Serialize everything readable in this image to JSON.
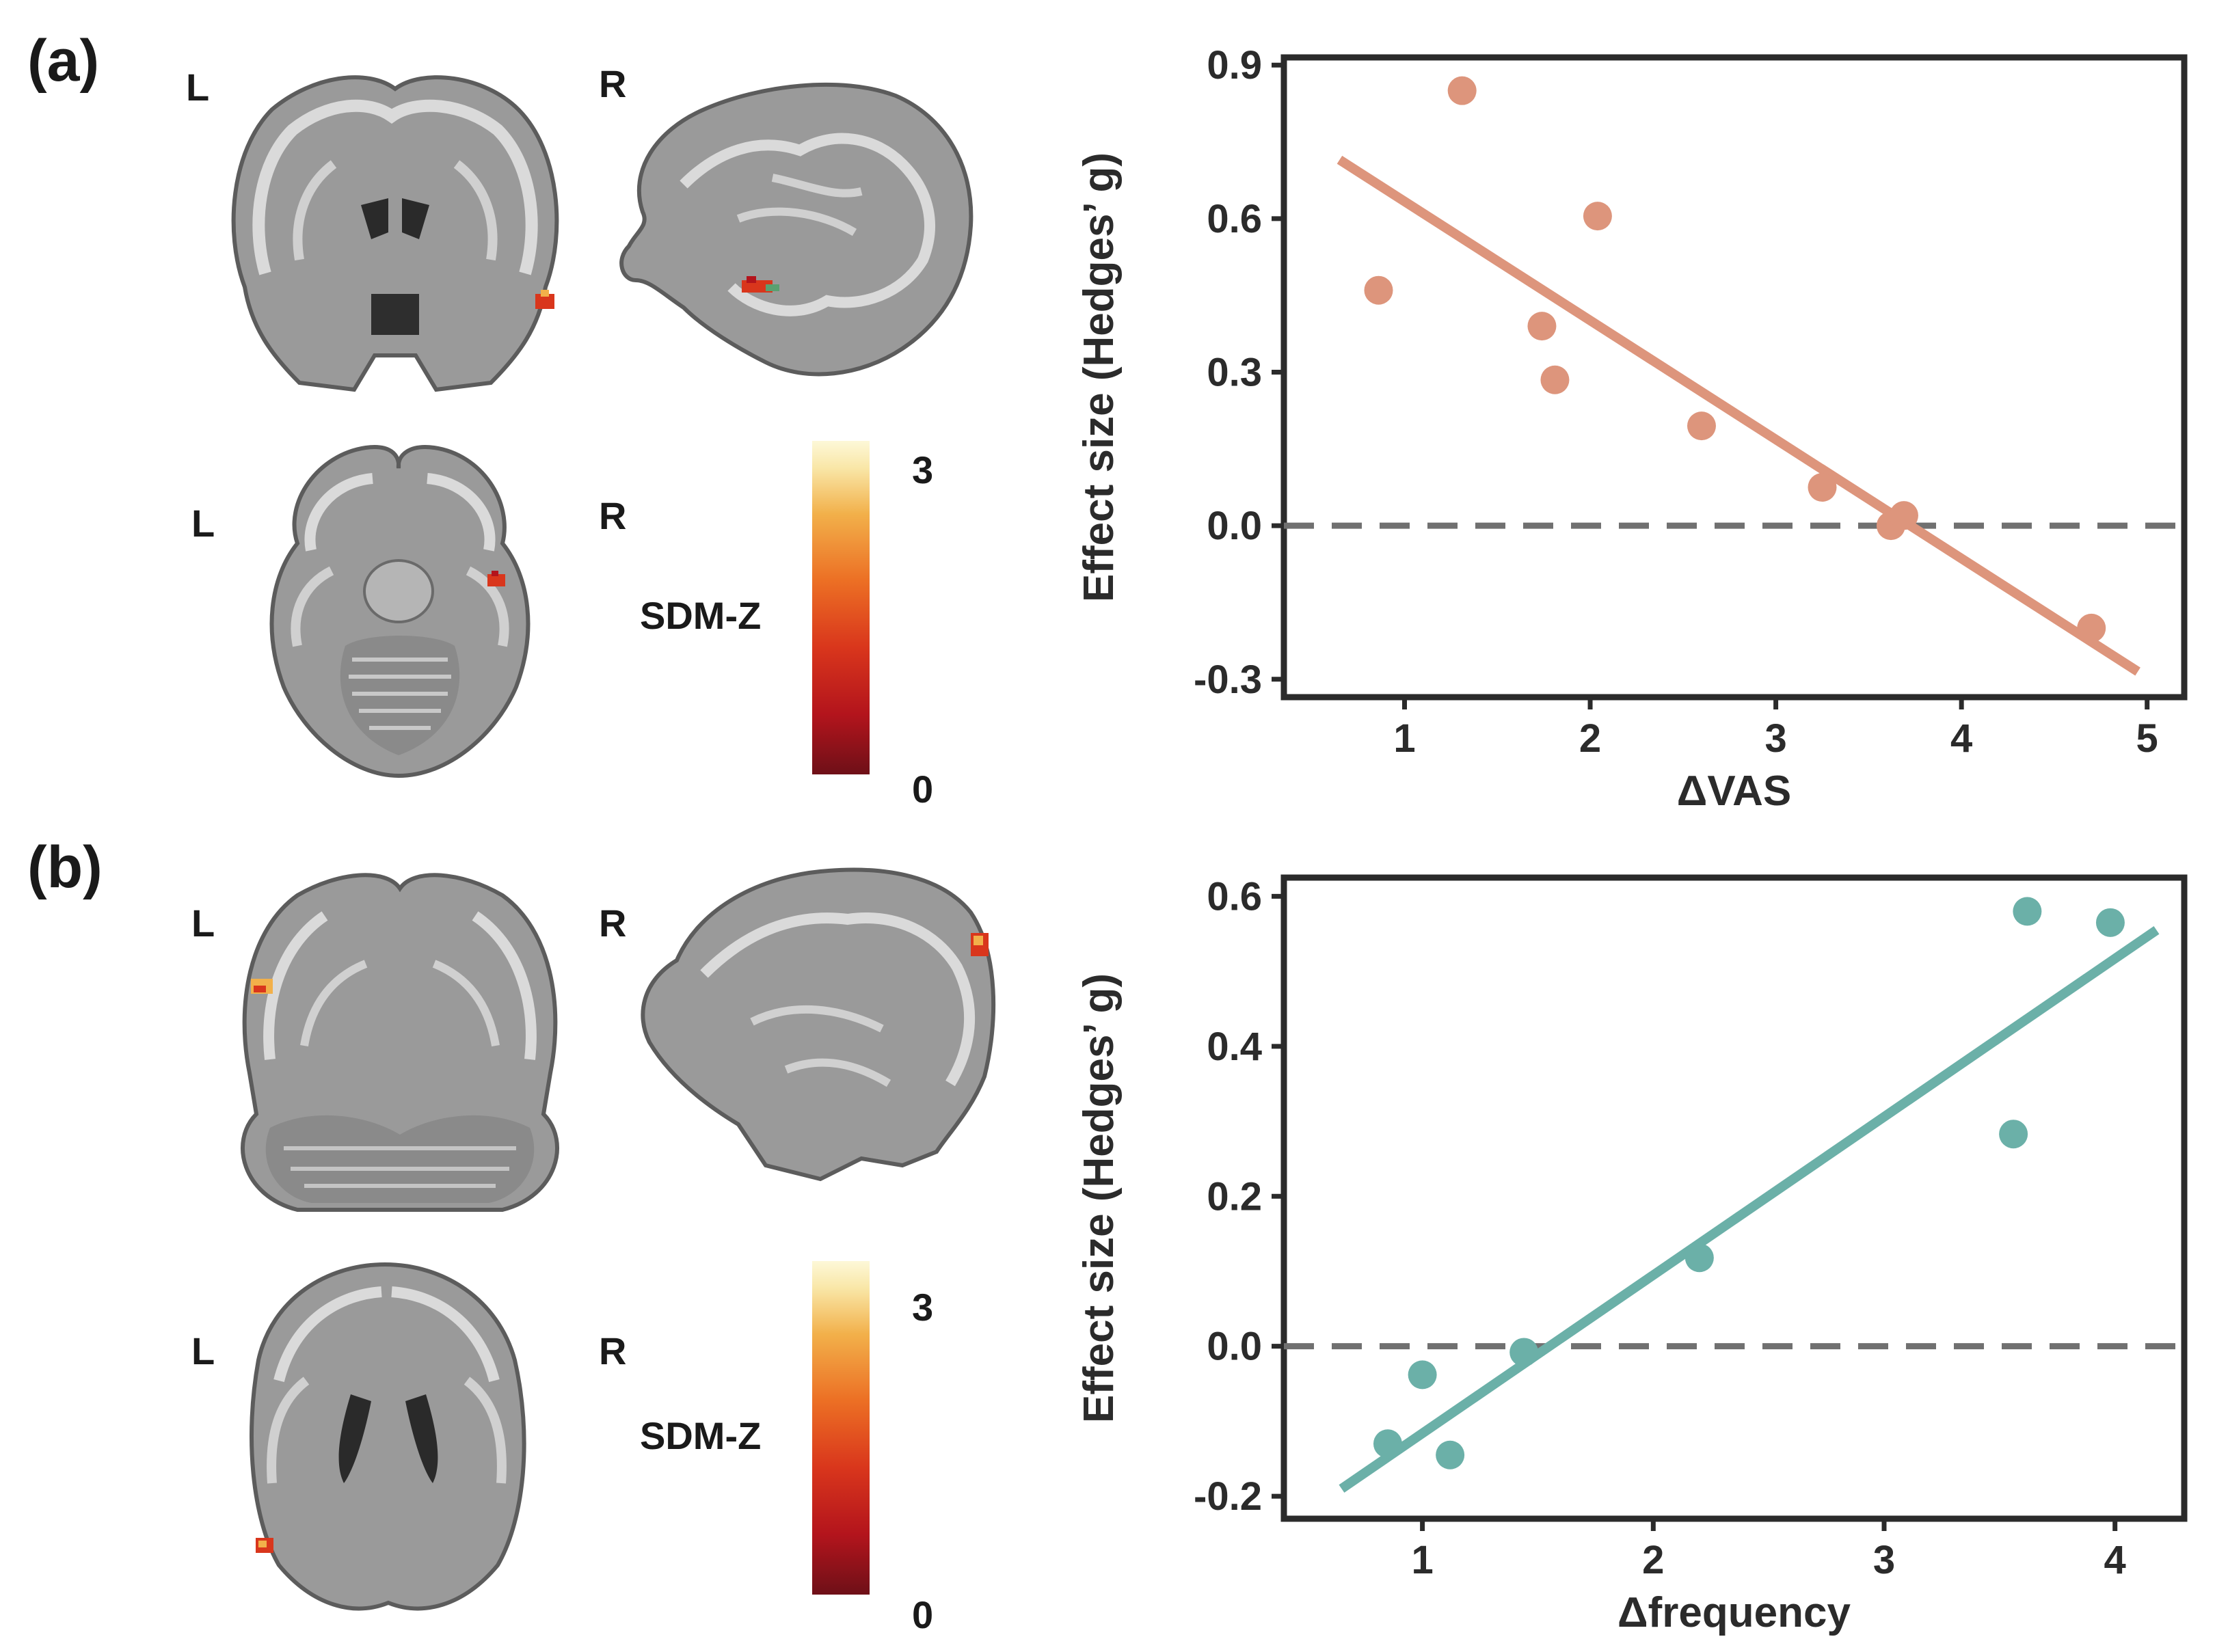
{
  "panel_a": {
    "label": "(a)",
    "brain_labels": {
      "top_left": "L",
      "top_right": "R",
      "bottom_left": "L",
      "bottom_right": "R"
    },
    "colorbar": {
      "title": "SDM-Z",
      "max": "3",
      "min": "0"
    }
  },
  "panel_b": {
    "label": "(b)",
    "brain_labels": {
      "top_left": "L",
      "top_right": "R",
      "bottom_left": "L",
      "bottom_right": "R"
    },
    "colorbar": {
      "title": "SDM-Z",
      "max": "3",
      "min": "0"
    }
  },
  "colors": {
    "series_a": "#dd957c",
    "series_b": "#6bb0a8",
    "axis": "#2b2b2b",
    "ref_line": "#707070"
  },
  "chart_data": [
    {
      "type": "scatter",
      "title": "",
      "xlabel": "ΔVAS",
      "ylabel": "Effect size (Hedges’ g)",
      "xlim": [
        0.35,
        5.2
      ],
      "ylim": [
        -0.335,
        0.915
      ],
      "xticks": [
        1,
        2,
        3,
        4,
        5
      ],
      "yticks": [
        -0.3,
        0.0,
        0.3,
        0.6,
        0.9
      ],
      "ytick_labels": [
        "-0.3",
        "0.0",
        "0.3",
        "0.6",
        "0.9"
      ],
      "reference_line_y": 0.0,
      "grid": false,
      "series": [
        {
          "points": [
            [
              0.86,
              0.46
            ],
            [
              1.31,
              0.85
            ],
            [
              1.74,
              0.39
            ],
            [
              1.81,
              0.285
            ],
            [
              2.04,
              0.605
            ],
            [
              2.6,
              0.195
            ],
            [
              3.25,
              0.075
            ],
            [
              3.62,
              0.0
            ],
            [
              3.69,
              0.02
            ],
            [
              4.7,
              -0.2
            ]
          ],
          "fit_line": [
            [
              0.65,
              0.715
            ],
            [
              4.95,
              -0.285
            ]
          ]
        }
      ]
    },
    {
      "type": "scatter",
      "title": "",
      "xlabel": "Δfrequency",
      "ylabel": "Effect size (Hedges’ g)",
      "xlim": [
        0.4,
        4.3
      ],
      "ylim": [
        -0.23,
        0.625
      ],
      "xticks": [
        1,
        2,
        3,
        4
      ],
      "yticks": [
        -0.2,
        0.0,
        0.2,
        0.4,
        0.6
      ],
      "ytick_labels": [
        "-0.2",
        "0.0",
        "0.2",
        "0.4",
        "0.6"
      ],
      "reference_line_y": 0.0,
      "grid": false,
      "series": [
        {
          "points": [
            [
              0.85,
              -0.13
            ],
            [
              1.0,
              -0.038
            ],
            [
              1.12,
              -0.145
            ],
            [
              1.44,
              -0.008
            ],
            [
              2.2,
              0.118
            ],
            [
              3.56,
              0.283
            ],
            [
              3.62,
              0.58
            ],
            [
              3.98,
              0.565
            ]
          ],
          "fit_line": [
            [
              0.65,
              -0.19
            ],
            [
              4.18,
              0.555
            ]
          ]
        }
      ]
    }
  ]
}
